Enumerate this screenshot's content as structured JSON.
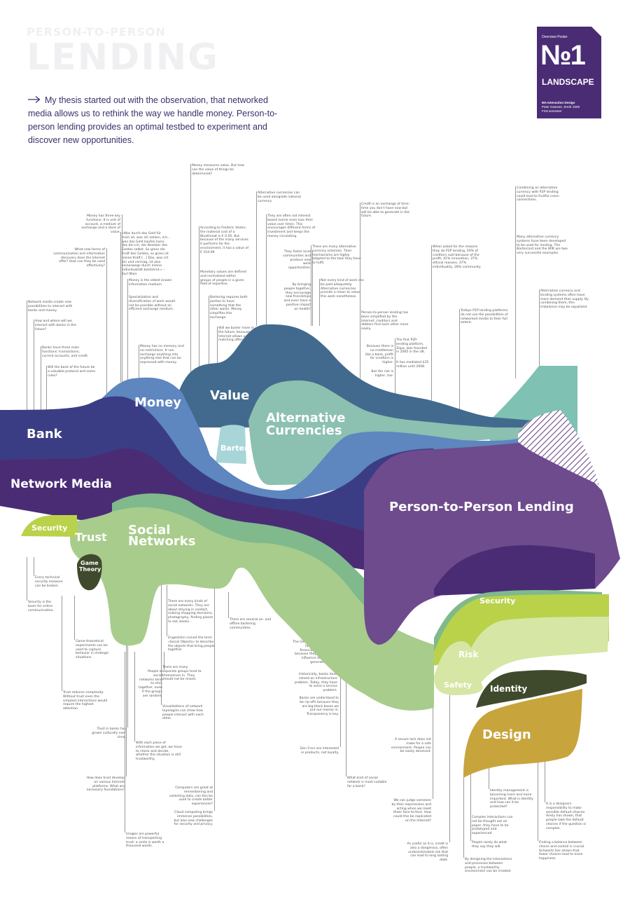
{
  "header": {
    "ghost_line1": "PERSON-TO-PERSON",
    "ghost_line2": "LENDING",
    "intro": "My thesis started out with the observation, that networked media allows us to rethink the way we handle money. Person-to-person lending provides an optimal testbed to experiment and discover new opportunities."
  },
  "badge": {
    "overview": "Overview Poster",
    "number": "№1",
    "subtitle": "LANDSCAPE",
    "meta1": "MA Interaction Design",
    "meta2": "Peter Gassner, ZHdK 2009",
    "meta3": "First semester"
  },
  "streams": {
    "bank": "Bank",
    "network_media": "Network Media",
    "money": "Money",
    "value": "Value",
    "barter": "Barter",
    "alt_line1": "Alternative",
    "alt_line2": "Currencies",
    "p2p": "Person-to-Person Lending",
    "security_left": "Security",
    "trust": "Trust",
    "game1": "Game",
    "game2": "Theory",
    "social1": "Social",
    "social2": "Networks",
    "security_right": "Security",
    "risk": "Risk",
    "safety": "Safety",
    "identity": "Identity",
    "design": "Design"
  },
  "colors": {
    "bank": "#3b3d84",
    "network": "#4a2c75",
    "money": "#5e86bf",
    "value": "#426a8e",
    "alt": "#8cc0b0",
    "barter": "#a8d5d8",
    "p2p": "#6e4b8c",
    "green_light": "#a8cc8c",
    "green_mid": "#7fb98c",
    "lime": "#b9d24a",
    "pale": "#d6e6a4",
    "dark_olive": "#3f4a2c",
    "design_gold": "#c8a43c",
    "teal_top": "#7fc1b2"
  },
  "notes": [
    "Money measures value. But how can the value of things be determined?",
    "Money has three key functions: It is unit of account, a medium of exchange and a store of value.",
    "«Was durch das Geld für mich ist, was ich zahlen, d.h., was das Geld kaufen kann, das bin ich, der Besitzer des Geldes selbst. So gross die Kraft des Geldes, so gross ist meine Kraft [...] Das, was ich bin und vermag, ist also keineswegs durch meine Individualität bestimmt.» – Karl Marx",
    "What new forms of communication and information discovery does the Internet offer? How can they be used effectively?",
    "Network media create new possibilities to interact with banks and money.",
    "How and where will we interact with banks in the future?",
    "Banks have three main functions: transactions, current accounts, and credit.",
    "Will the bank of the future be a valuable protocol and some rules?",
    "Money is the oldest known information medium.",
    "Specialization and diversification of work would not be possible without an efficient exchange medium.",
    "Money has no memory and no restrictions. It can exchange anything into anything else that can be expressed with money.",
    "According to Frederic Vester, the material cost of a Bluethroat is € 0.05. But because of the many services it performs for the environment, it has a value of € 154.09",
    "Monetary values are defined and normalized within groups of people in a given field of expertise.",
    "Bartering requires both parties to have something that the other wants. Money simplifies this exchange.",
    "Will we barter more in the future, because the Internet allows us to find matching offers?",
    "Alternative currencies can be used alongside national currency.",
    "They are often not interest based (some even lose their value over time). This encourages different forms of investment and keeps the money circulating.",
    "They foster local communities and produce new work opportunities.",
    "By bringing people together, they encourage new friendships and even have a positive impact on health!",
    "There are many alternative currency schemes. Their mechanisms are highly adapted to the task they have to fulfil.",
    "Not every kind of work can be paid adequately. Alternative currencies provide a mean to value this work nonetheless.",
    "Credit is an exchange of time: time you don't have now but will be able to generate in the future.",
    "Person-to-person lending has been simplified by the Internet: creditors and debtors find each other more easily.",
    "Because there is no middleman like a bank, profit for creditors is higher.",
    "But the risk is higher, too.",
    "The first P2P-lending platform, Zopa, was founded in 2005 in the UK.",
    "It has mediated £25 million until 2008.",
    "When asked for the reasons they do P2P lending, 50% of creditors said because of the profit, 41% innovation, 37% ethical reasons, 37% individuality, 28% community.",
    "Todays P2P lending platforms do not use the possibilities of networked media to their full extent.",
    "Combining an alternative currency with P2P lending could lead to fruitful cross-connections.",
    "Many alternative currency systems have been developed to be used for lending. The Bartercard and the WIR are two very successful examples.",
    "Alternative currency and lending systems often have more demand than supply. By combining them, this imbalance may be equalized.",
    "Every technical security measure can be broken.",
    "Security is the basis for online communication.",
    "Game theoretical experiments can be used to capture behavior in strategic situations.",
    "Trust reduces complexity. Without trust even the simplest interactions would require the highest attention.",
    "Trust in banks has grown culturally over time.",
    "How does trust develop on various Internet platforms. What are necessary foundations?",
    "Images are powerful means of transporting trust: a smile is worth a thousand words.",
    "People in social networks tend to stick together, even if the groups are random.",
    "There are many kinds of social networks. They are about staying in contact, making shopping decisions, photography, finding places to eat, books...",
    "Engeström coined the term «Social Objects» to describe the objects that bring people together.",
    "There are many separate groups tend to themselves in. They should not be mixed.",
    "Visualizations of network topologies can show how people interact with each other.",
    "With each piece of information we get, we have to check and decide, whether the situation is still trustworthy.",
    "Computers are great at remembering and collecting data, can this be used to create better experiences?",
    "Cloud computing brings immense possibilities, but also new challenges for security and privacy.",
    "There are several on- and offline bartering communities.",
    "The Generation Y has a huge impact on financial decisions, because they have an influence on older generations.",
    "Historically, banks have solved an infrastructure problem. Today, they have to solve a service problem.",
    "Banks are understood to be rip-offs because they are big black boxes we put our money in. Transparency is key.",
    "Gen Y-ers are interested in products, not loyalty.",
    "What kind of social network is most suitable for a bank?",
    "A secure lock does not make for a safe environment. People can be easily deceived.",
    "We can judge someone by their expressions and acting when we meet them face-to-face. How could this be replicated on the Internet?",
    "As useful as it is, credit is also a dangerous, often underestimated risk that can lead to long lasting debt.",
    "By designing the interactions and processes between people, a trustworthy environment can be created.",
    "Identity management is becoming more and more important. What is identity and how can it be protected?",
    "Complex interactions can not be thought out on paper, they have to be prototyped and experienced.",
    "People rarely do what they say they will.",
    "It is a designers responsibility to make sensible default choices. Ariely has shown, that people take the default choices if the question is complex.",
    "Finding a balance between choice and control is crucial. Schwartz has shown that fewer choices lead to more happiness."
  ]
}
